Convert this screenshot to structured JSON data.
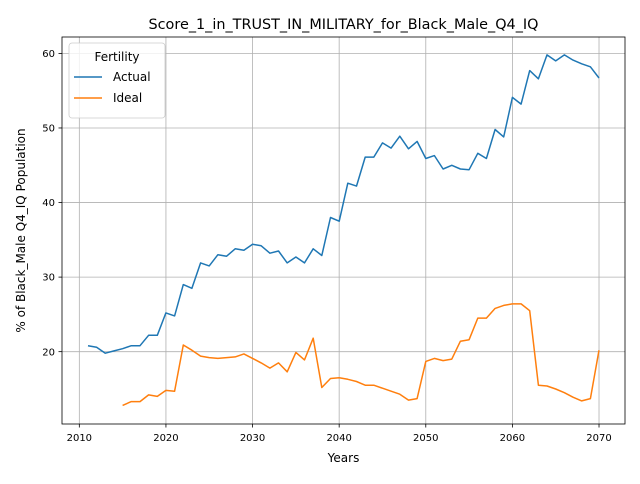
{
  "chart_data": {
    "type": "line",
    "title": "Score_1_in_TRUST_IN_MILITARY_for_Black_Male_Q4_IQ",
    "xlabel": "Years",
    "ylabel": "% of Black_Male Q4_IQ Population",
    "xlim": [
      2008,
      2073
    ],
    "ylim": [
      10.3,
      62.2
    ],
    "xticks": [
      2010,
      2020,
      2030,
      2040,
      2050,
      2060,
      2070
    ],
    "yticks": [
      20,
      30,
      40,
      50,
      60
    ],
    "grid": true,
    "legend": {
      "title": "Fertility",
      "placement": "top-left"
    },
    "series": [
      {
        "name": "Actual",
        "color": "#1f77b4",
        "x": [
          2011,
          2012,
          2013,
          2014,
          2015,
          2016,
          2017,
          2018,
          2019,
          2020,
          2021,
          2022,
          2023,
          2024,
          2025,
          2026,
          2027,
          2028,
          2029,
          2030,
          2031,
          2032,
          2033,
          2034,
          2035,
          2036,
          2037,
          2038,
          2039,
          2040,
          2041,
          2042,
          2043,
          2044,
          2045,
          2046,
          2047,
          2048,
          2049,
          2050,
          2051,
          2052,
          2053,
          2054,
          2055,
          2056,
          2057,
          2058,
          2059,
          2060,
          2061,
          2062,
          2063,
          2064,
          2065,
          2066,
          2067,
          2068,
          2069,
          2070
        ],
        "y": [
          20.8,
          20.6,
          19.8,
          20.1,
          20.4,
          20.8,
          20.8,
          22.2,
          22.2,
          25.2,
          24.8,
          29.0,
          28.5,
          31.9,
          31.5,
          33.0,
          32.8,
          33.8,
          33.6,
          34.4,
          34.2,
          33.2,
          33.5,
          31.9,
          32.7,
          31.9,
          33.8,
          32.9,
          38.0,
          37.5,
          42.6,
          42.2,
          46.1,
          46.1,
          48.0,
          47.3,
          48.9,
          47.2,
          48.2,
          45.9,
          46.3,
          44.5,
          45.0,
          44.5,
          44.4,
          46.6,
          45.9,
          49.8,
          48.8,
          54.1,
          53.2,
          57.7,
          56.6,
          59.8,
          59.0,
          59.8,
          59.1,
          58.6,
          58.2,
          56.7
        ]
      },
      {
        "name": "Ideal",
        "color": "#ff7f0e",
        "x": [
          2015,
          2016,
          2017,
          2018,
          2019,
          2020,
          2021,
          2022,
          2023,
          2024,
          2025,
          2026,
          2027,
          2028,
          2029,
          2030,
          2031,
          2032,
          2033,
          2034,
          2035,
          2036,
          2037,
          2038,
          2039,
          2040,
          2041,
          2042,
          2043,
          2044,
          2045,
          2046,
          2047,
          2048,
          2049,
          2050,
          2051,
          2052,
          2053,
          2054,
          2055,
          2056,
          2057,
          2058,
          2059,
          2060,
          2061,
          2062,
          2063,
          2064,
          2065,
          2066,
          2067,
          2068,
          2069,
          2070
        ],
        "y": [
          12.8,
          13.3,
          13.3,
          14.2,
          14.0,
          14.8,
          14.7,
          20.9,
          20.2,
          19.4,
          19.2,
          19.1,
          19.2,
          19.3,
          19.7,
          19.1,
          18.5,
          17.8,
          18.5,
          17.3,
          19.9,
          18.9,
          21.8,
          15.2,
          16.4,
          16.5,
          16.3,
          16.0,
          15.5,
          15.5,
          15.1,
          14.7,
          14.3,
          13.5,
          13.7,
          18.7,
          19.1,
          18.8,
          19.0,
          21.4,
          21.6,
          24.5,
          24.5,
          25.8,
          26.2,
          26.4,
          26.4,
          25.5,
          15.5,
          15.4,
          15.0,
          14.5,
          13.9,
          13.4,
          13.7,
          20.2
        ]
      }
    ]
  }
}
